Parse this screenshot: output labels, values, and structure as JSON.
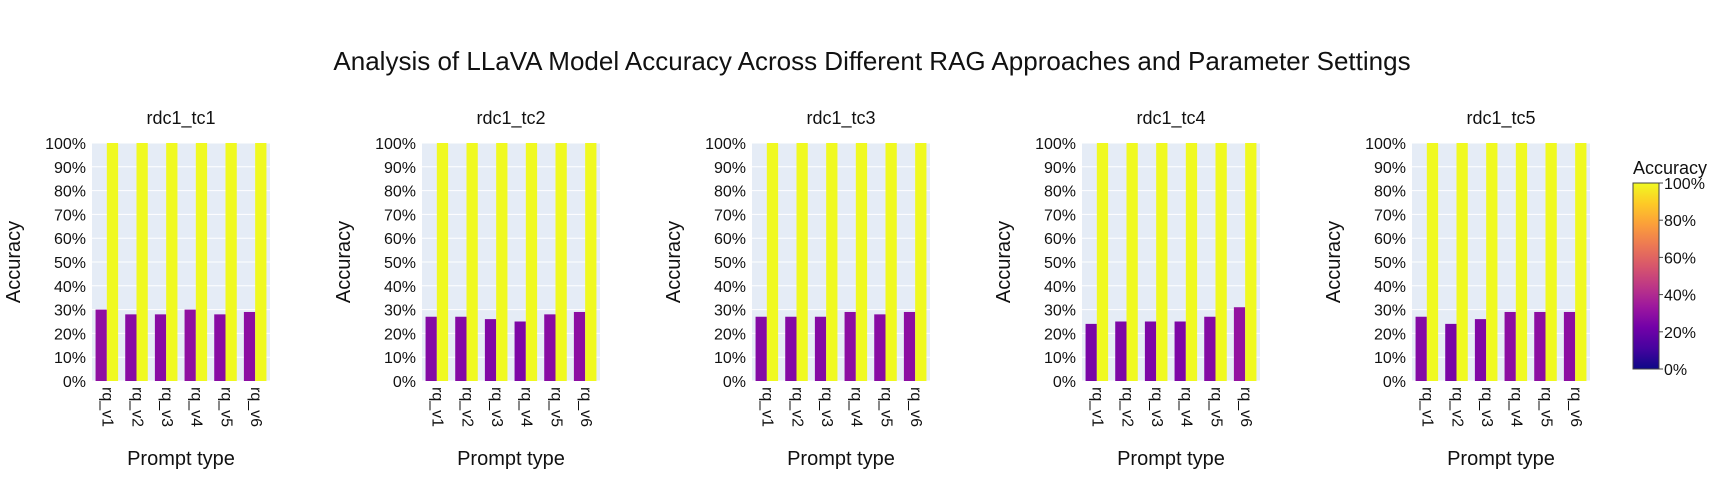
{
  "chart_data": {
    "type": "bar",
    "title": "Analysis of LLaVA Model Accuracy Across Different RAG Approaches and Parameter Settings",
    "categories": [
      "rq_v1",
      "rq_v2",
      "rq_v3",
      "rq_v4",
      "rq_v5",
      "rq_v6"
    ],
    "xlabel": "Prompt type",
    "ylabel": "Accuracy",
    "ylim": [
      0,
      100
    ],
    "y_ticks": [
      "0%",
      "10%",
      "20%",
      "30%",
      "40%",
      "50%",
      "60%",
      "70%",
      "80%",
      "90%",
      "100%"
    ],
    "grid": true,
    "plot_background": "#E5ECF6",
    "colorbar": {
      "title": "Accuracy",
      "ticks": [
        "0%",
        "20%",
        "40%",
        "60%",
        "80%",
        "100%"
      ],
      "colorscale": [
        "#0d0887",
        "#46039f",
        "#7201a8",
        "#9c179e",
        "#bd3786",
        "#d8576b",
        "#ed7953",
        "#fb9f3a",
        "#fdca26",
        "#f0f921"
      ],
      "placement": "right"
    },
    "panels": [
      {
        "title": "rdc1_tc1",
        "values": [
          30,
          28,
          28,
          30,
          28,
          29
        ],
        "reference": [
          100,
          100,
          100,
          100,
          100,
          100
        ]
      },
      {
        "title": "rdc1_tc2",
        "values": [
          27,
          27,
          26,
          25,
          28,
          29
        ],
        "reference": [
          100,
          100,
          100,
          100,
          100,
          100
        ]
      },
      {
        "title": "rdc1_tc3",
        "values": [
          27,
          27,
          27,
          29,
          28,
          29
        ],
        "reference": [
          100,
          100,
          100,
          100,
          100,
          100
        ]
      },
      {
        "title": "rdc1_tc4",
        "values": [
          24,
          25,
          25,
          25,
          27,
          31
        ],
        "reference": [
          100,
          100,
          100,
          100,
          100,
          100
        ]
      },
      {
        "title": "rdc1_tc5",
        "values": [
          27,
          24,
          26,
          29,
          29,
          29
        ],
        "reference": [
          100,
          100,
          100,
          100,
          100,
          100
        ]
      }
    ]
  }
}
